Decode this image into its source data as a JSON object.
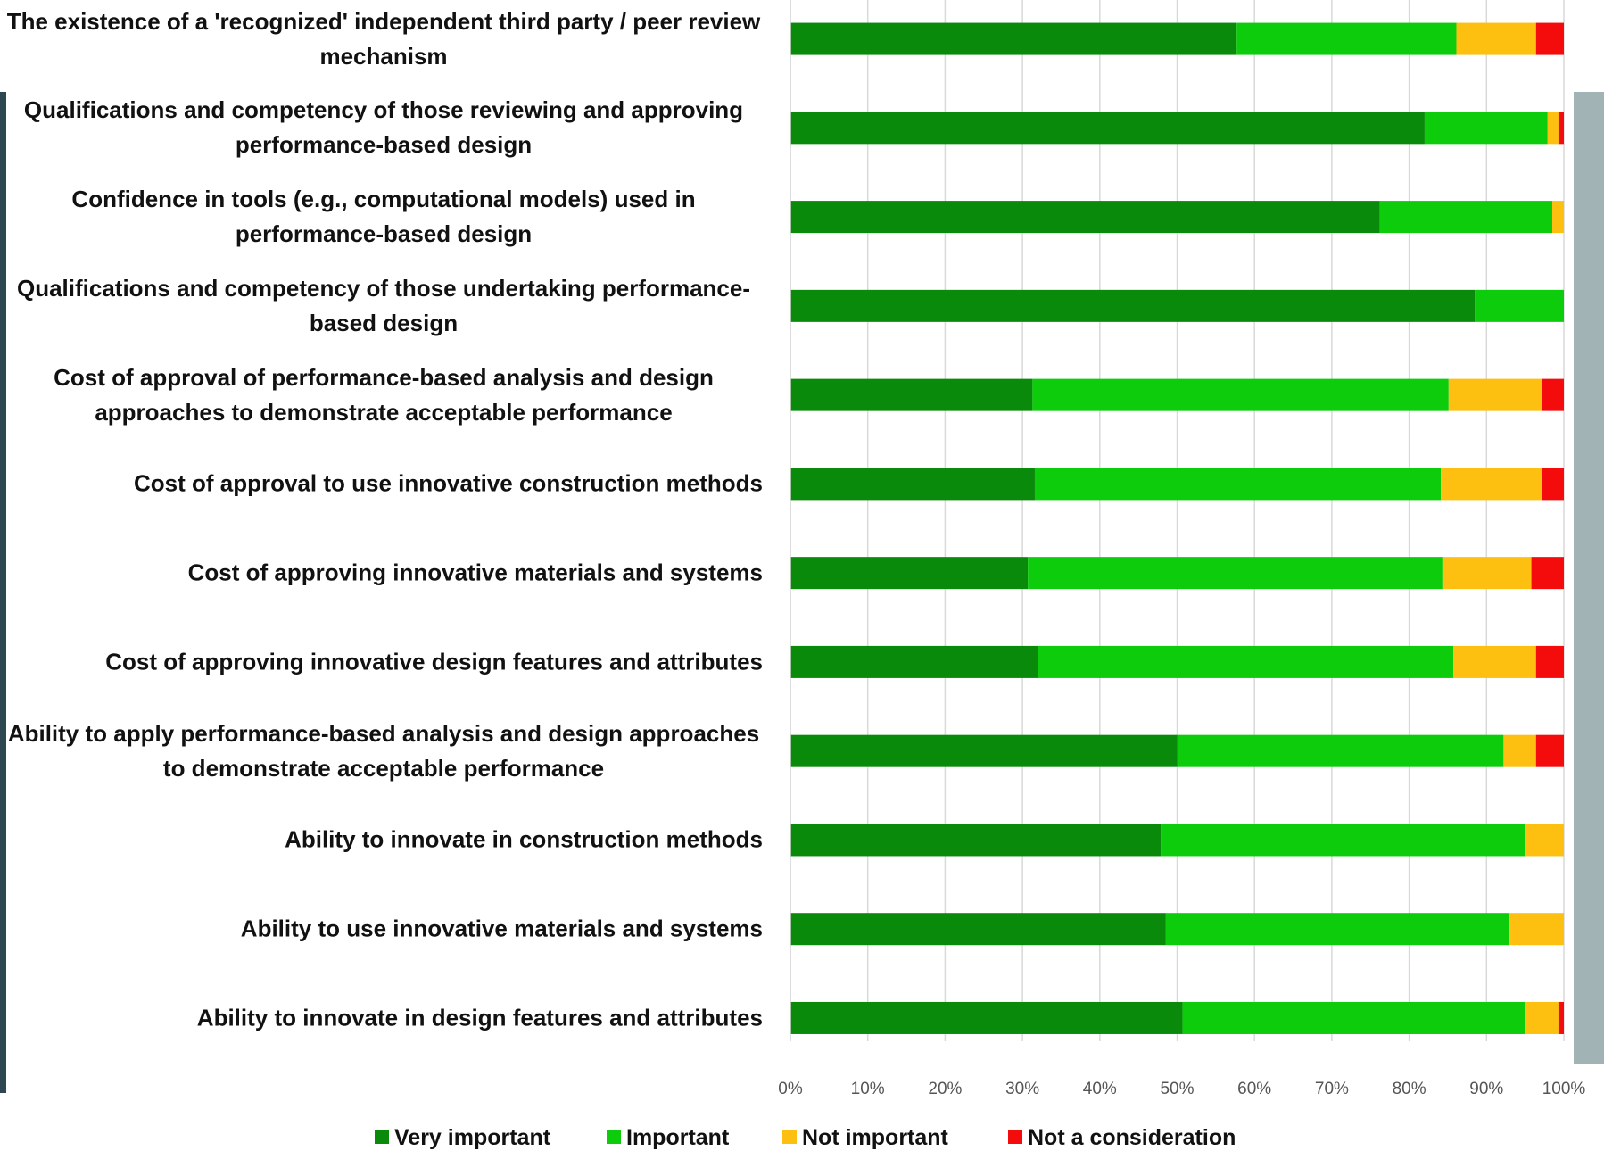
{
  "chart_data": {
    "type": "stacked-barh",
    "categories": [
      "The existence of a 'recognized' independent third party / peer review mechanism",
      "Qualifications and competency of those reviewing and approving performance-based design",
      "Confidence in tools (e.g., computational models) used in performance-based design",
      "Qualifications and competency of those undertaking performance-based design",
      "Cost of approval of performance-based analysis and design approaches to demonstrate acceptable performance",
      "Cost of approval to use innovative construction methods",
      "Cost of approving innovative materials and systems",
      "Cost of approving innovative design features and attributes",
      "Ability to apply performance-based analysis and design approaches to demonstrate acceptable performance",
      "Ability to innovate in construction methods",
      "Ability to use innovative materials and systems",
      "Ability to innovate in design features and attributes"
    ],
    "series": [
      {
        "name": "Very important",
        "color": "#0a8a0a",
        "values": [
          57.7,
          82.0,
          76.2,
          88.5,
          31.3,
          31.6,
          30.7,
          32.0,
          50.0,
          47.9,
          48.5,
          50.7
        ]
      },
      {
        "name": "Important",
        "color": "#0ccc0c",
        "values": [
          28.4,
          15.9,
          22.3,
          11.5,
          53.8,
          52.5,
          53.6,
          53.7,
          42.2,
          47.1,
          44.4,
          44.3
        ]
      },
      {
        "name": "Not important",
        "color": "#fdbf10",
        "values": [
          10.3,
          1.4,
          1.5,
          0,
          12.1,
          13.1,
          11.5,
          10.7,
          4.2,
          5.0,
          7.1,
          4.3
        ]
      },
      {
        "name": "Not a consideration",
        "color": "#f40b0b",
        "values": [
          3.6,
          0.7,
          0,
          0,
          2.8,
          2.8,
          4.2,
          3.6,
          3.6,
          0,
          0,
          0.7
        ]
      }
    ],
    "xlim": [
      0,
      100
    ],
    "xticks": [
      {
        "value": 0,
        "label": "0%"
      },
      {
        "value": 10,
        "label": "10%"
      },
      {
        "value": 20,
        "label": "20%"
      },
      {
        "value": 30,
        "label": "30%"
      },
      {
        "value": 40,
        "label": "40%"
      },
      {
        "value": 50,
        "label": "50%"
      },
      {
        "value": 60,
        "label": "60%"
      },
      {
        "value": 70,
        "label": "70%"
      },
      {
        "value": 80,
        "label": "80%"
      },
      {
        "value": 90,
        "label": "90%"
      },
      {
        "value": 100,
        "label": "100%"
      }
    ],
    "grid": true
  }
}
